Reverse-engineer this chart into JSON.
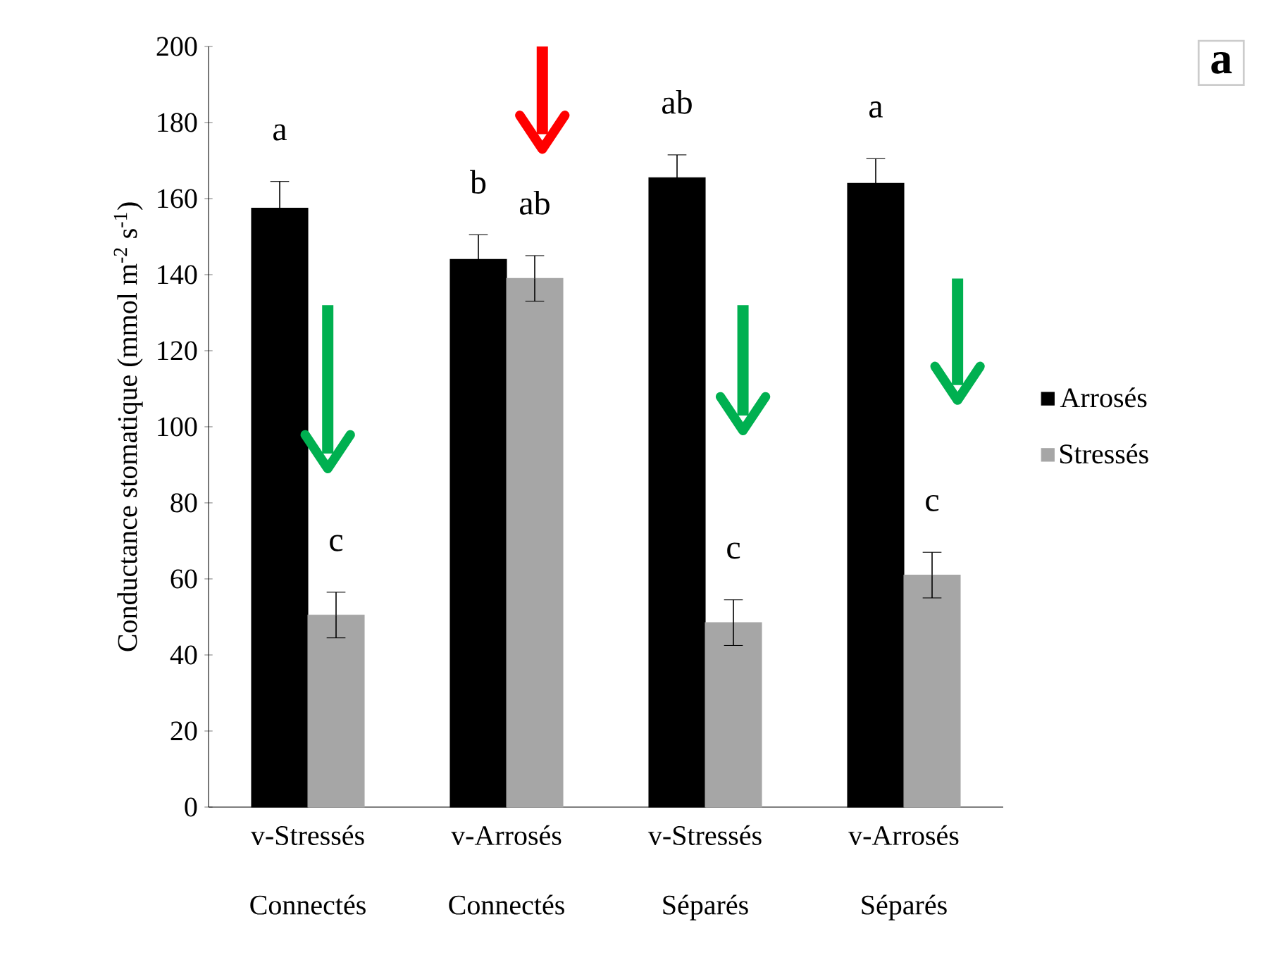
{
  "chart_data": {
    "type": "bar",
    "ylabel": "Conductance  stomatique (mmol m$^{-2}$ s$^{-1}$)",
    "categories": [
      "v-Stressés Connectés",
      "v-Arrosés Connectés",
      "v-Stressés Séparés",
      "v-Arrosés Séparés"
    ],
    "series": [
      {
        "name": "Arrosés",
        "color": "#000000",
        "values": [
          157.5,
          144,
          165.5,
          164
        ],
        "errors": [
          7,
          6.5,
          6,
          6.5
        ]
      },
      {
        "name": "Stressés",
        "color": "#a6a6a6",
        "values": [
          50.5,
          139,
          48.5,
          61
        ],
        "errors": [
          6,
          6,
          6,
          6
        ]
      }
    ],
    "ylim": [
      0,
      200
    ],
    "yticks": [
      0,
      20,
      40,
      60,
      80,
      100,
      120,
      140,
      160,
      180,
      200
    ],
    "legend": "right",
    "annotations": [
      "a",
      "c",
      "b",
      "ab",
      "ab",
      "c",
      "a",
      "c",
      "a"
    ]
  }
}
